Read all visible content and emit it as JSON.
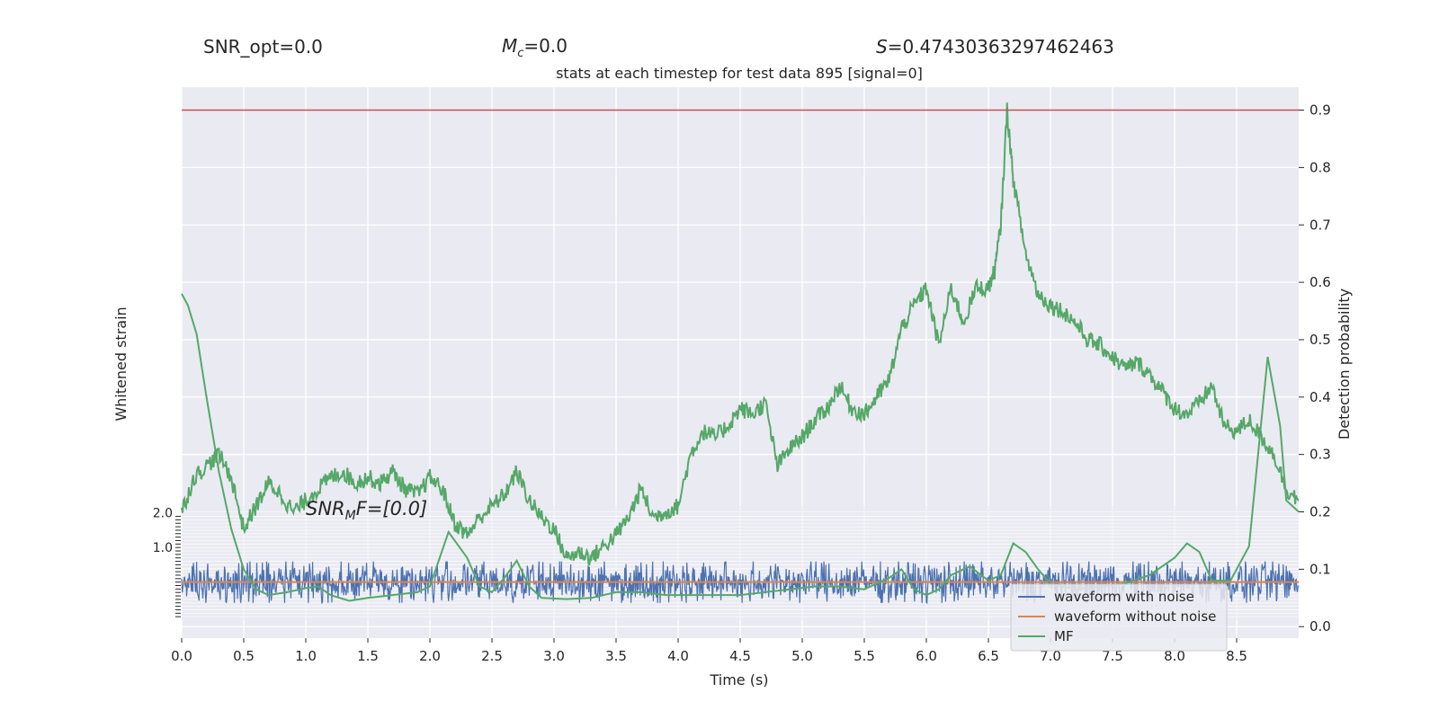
{
  "chart_data": {
    "type": "line",
    "header": {
      "snr_opt": "SNR_opt=0.0",
      "mc_symbol": "M",
      "mc_sub": "c",
      "mc_value": "=0.0",
      "s_symbol": "S",
      "s_value": "=0.47430363297462463"
    },
    "title": "stats at each timestep for test data 895 [signal=0]",
    "xlabel": "Time (s)",
    "ylabel_left": "Whitened strain",
    "ylabel_right": "Detection probability",
    "annotation": {
      "sym": "SNR",
      "sub": "M",
      "tail": "F=[0.0]"
    },
    "x_ticks": [
      "0.0",
      "0.5",
      "1.0",
      "1.5",
      "2.0",
      "2.5",
      "3.0",
      "3.5",
      "4.0",
      "4.5",
      "5.0",
      "5.5",
      "6.0",
      "6.5",
      "7.0",
      "7.5",
      "8.0",
      "8.5"
    ],
    "xlim": [
      0.0,
      9.0
    ],
    "y_right_ticks": [
      "0.0",
      "0.1",
      "0.2",
      "0.3",
      "0.4",
      "0.5",
      "0.6",
      "0.7",
      "0.8",
      "0.9"
    ],
    "y_right_lim": [
      -0.02,
      0.94
    ],
    "y_left_ticks_visible": [
      "2.0",
      "1.0"
    ],
    "y_left_lim": [
      -1.1,
      2.2
    ],
    "threshold": 0.9,
    "colors": {
      "noise": "#4c72b0",
      "clean": "#dd8452",
      "mf": "#55a868",
      "prob": "#55a868",
      "threshold": "#c44e52",
      "axes_bg": "#eaeaf2",
      "grid": "#ffffff"
    },
    "legend": {
      "position": "lower right",
      "entries": [
        "waveform with noise",
        "waveform without noise",
        "MF"
      ]
    },
    "series": [
      {
        "name": "Detection probability",
        "role": "prob",
        "points": [
          [
            0.0,
            0.2
          ],
          [
            0.1,
            0.26
          ],
          [
            0.2,
            0.28
          ],
          [
            0.3,
            0.3
          ],
          [
            0.4,
            0.26
          ],
          [
            0.5,
            0.17
          ],
          [
            0.6,
            0.21
          ],
          [
            0.7,
            0.25
          ],
          [
            0.8,
            0.23
          ],
          [
            0.9,
            0.2
          ],
          [
            1.0,
            0.22
          ],
          [
            1.1,
            0.24
          ],
          [
            1.2,
            0.26
          ],
          [
            1.3,
            0.27
          ],
          [
            1.4,
            0.25
          ],
          [
            1.5,
            0.26
          ],
          [
            1.6,
            0.25
          ],
          [
            1.7,
            0.27
          ],
          [
            1.8,
            0.24
          ],
          [
            1.9,
            0.23
          ],
          [
            2.0,
            0.26
          ],
          [
            2.1,
            0.24
          ],
          [
            2.2,
            0.18
          ],
          [
            2.3,
            0.16
          ],
          [
            2.4,
            0.19
          ],
          [
            2.5,
            0.21
          ],
          [
            2.6,
            0.23
          ],
          [
            2.7,
            0.27
          ],
          [
            2.8,
            0.22
          ],
          [
            2.9,
            0.19
          ],
          [
            3.0,
            0.17
          ],
          [
            3.1,
            0.12
          ],
          [
            3.2,
            0.13
          ],
          [
            3.3,
            0.12
          ],
          [
            3.4,
            0.14
          ],
          [
            3.5,
            0.16
          ],
          [
            3.6,
            0.19
          ],
          [
            3.7,
            0.24
          ],
          [
            3.8,
            0.19
          ],
          [
            3.9,
            0.2
          ],
          [
            4.0,
            0.21
          ],
          [
            4.1,
            0.3
          ],
          [
            4.2,
            0.34
          ],
          [
            4.3,
            0.33
          ],
          [
            4.4,
            0.35
          ],
          [
            4.5,
            0.38
          ],
          [
            4.6,
            0.37
          ],
          [
            4.7,
            0.39
          ],
          [
            4.8,
            0.28
          ],
          [
            4.9,
            0.31
          ],
          [
            5.0,
            0.33
          ],
          [
            5.1,
            0.36
          ],
          [
            5.2,
            0.38
          ],
          [
            5.3,
            0.42
          ],
          [
            5.4,
            0.38
          ],
          [
            5.5,
            0.37
          ],
          [
            5.6,
            0.4
          ],
          [
            5.7,
            0.43
          ],
          [
            5.8,
            0.52
          ],
          [
            5.9,
            0.56
          ],
          [
            6.0,
            0.59
          ],
          [
            6.1,
            0.49
          ],
          [
            6.2,
            0.59
          ],
          [
            6.3,
            0.53
          ],
          [
            6.4,
            0.59
          ],
          [
            6.5,
            0.59
          ],
          [
            6.55,
            0.62
          ],
          [
            6.6,
            0.7
          ],
          [
            6.65,
            0.9
          ],
          [
            6.7,
            0.78
          ],
          [
            6.8,
            0.65
          ],
          [
            6.9,
            0.58
          ],
          [
            7.0,
            0.56
          ],
          [
            7.1,
            0.55
          ],
          [
            7.2,
            0.53
          ],
          [
            7.3,
            0.5
          ],
          [
            7.4,
            0.49
          ],
          [
            7.5,
            0.47
          ],
          [
            7.6,
            0.45
          ],
          [
            7.7,
            0.46
          ],
          [
            7.8,
            0.44
          ],
          [
            7.9,
            0.41
          ],
          [
            8.0,
            0.38
          ],
          [
            8.1,
            0.37
          ],
          [
            8.2,
            0.39
          ],
          [
            8.3,
            0.42
          ],
          [
            8.4,
            0.35
          ],
          [
            8.5,
            0.34
          ],
          [
            8.6,
            0.36
          ],
          [
            8.7,
            0.33
          ],
          [
            8.8,
            0.3
          ],
          [
            8.9,
            0.24
          ],
          [
            9.0,
            0.22
          ]
        ]
      },
      {
        "name": "MF",
        "role": "mf",
        "points": [
          [
            0.0,
            0.58
          ],
          [
            0.05,
            0.56
          ],
          [
            0.12,
            0.51
          ],
          [
            0.2,
            0.4
          ],
          [
            0.3,
            0.27
          ],
          [
            0.4,
            0.17
          ],
          [
            0.5,
            0.1
          ],
          [
            0.6,
            0.065
          ],
          [
            0.7,
            0.055
          ],
          [
            0.85,
            0.06
          ],
          [
            1.0,
            0.067
          ],
          [
            1.1,
            0.07
          ],
          [
            1.2,
            0.055
          ],
          [
            1.35,
            0.045
          ],
          [
            1.5,
            0.05
          ],
          [
            1.7,
            0.055
          ],
          [
            1.9,
            0.06
          ],
          [
            2.0,
            0.07
          ],
          [
            2.15,
            0.165
          ],
          [
            2.3,
            0.12
          ],
          [
            2.4,
            0.07
          ],
          [
            2.5,
            0.06
          ],
          [
            2.6,
            0.085
          ],
          [
            2.7,
            0.115
          ],
          [
            2.8,
            0.07
          ],
          [
            2.9,
            0.05
          ],
          [
            3.1,
            0.048
          ],
          [
            3.3,
            0.05
          ],
          [
            3.5,
            0.06
          ],
          [
            3.7,
            0.06
          ],
          [
            3.9,
            0.055
          ],
          [
            4.1,
            0.055
          ],
          [
            4.3,
            0.055
          ],
          [
            4.5,
            0.055
          ],
          [
            4.7,
            0.06
          ],
          [
            4.9,
            0.065
          ],
          [
            5.1,
            0.07
          ],
          [
            5.3,
            0.07
          ],
          [
            5.5,
            0.065
          ],
          [
            5.7,
            0.085
          ],
          [
            5.8,
            0.1
          ],
          [
            5.9,
            0.065
          ],
          [
            6.0,
            0.055
          ],
          [
            6.1,
            0.065
          ],
          [
            6.2,
            0.09
          ],
          [
            6.35,
            0.105
          ],
          [
            6.5,
            0.08
          ],
          [
            6.6,
            0.09
          ],
          [
            6.7,
            0.145
          ],
          [
            6.8,
            0.13
          ],
          [
            6.9,
            0.1
          ],
          [
            7.0,
            0.075
          ],
          [
            7.2,
            0.065
          ],
          [
            7.4,
            0.07
          ],
          [
            7.6,
            0.075
          ],
          [
            7.8,
            0.09
          ],
          [
            8.0,
            0.12
          ],
          [
            8.1,
            0.145
          ],
          [
            8.2,
            0.13
          ],
          [
            8.3,
            0.08
          ],
          [
            8.45,
            0.08
          ],
          [
            8.6,
            0.14
          ],
          [
            8.75,
            0.47
          ],
          [
            8.85,
            0.35
          ],
          [
            8.9,
            0.22
          ],
          [
            9.0,
            0.2
          ]
        ]
      },
      {
        "name": "waveform without noise",
        "role": "clean",
        "points": [
          [
            0.0,
            0.0
          ],
          [
            9.0,
            0.0
          ]
        ]
      },
      {
        "name": "waveform with noise",
        "role": "noise",
        "amplitude": 0.3,
        "peak": 0.6
      }
    ]
  }
}
